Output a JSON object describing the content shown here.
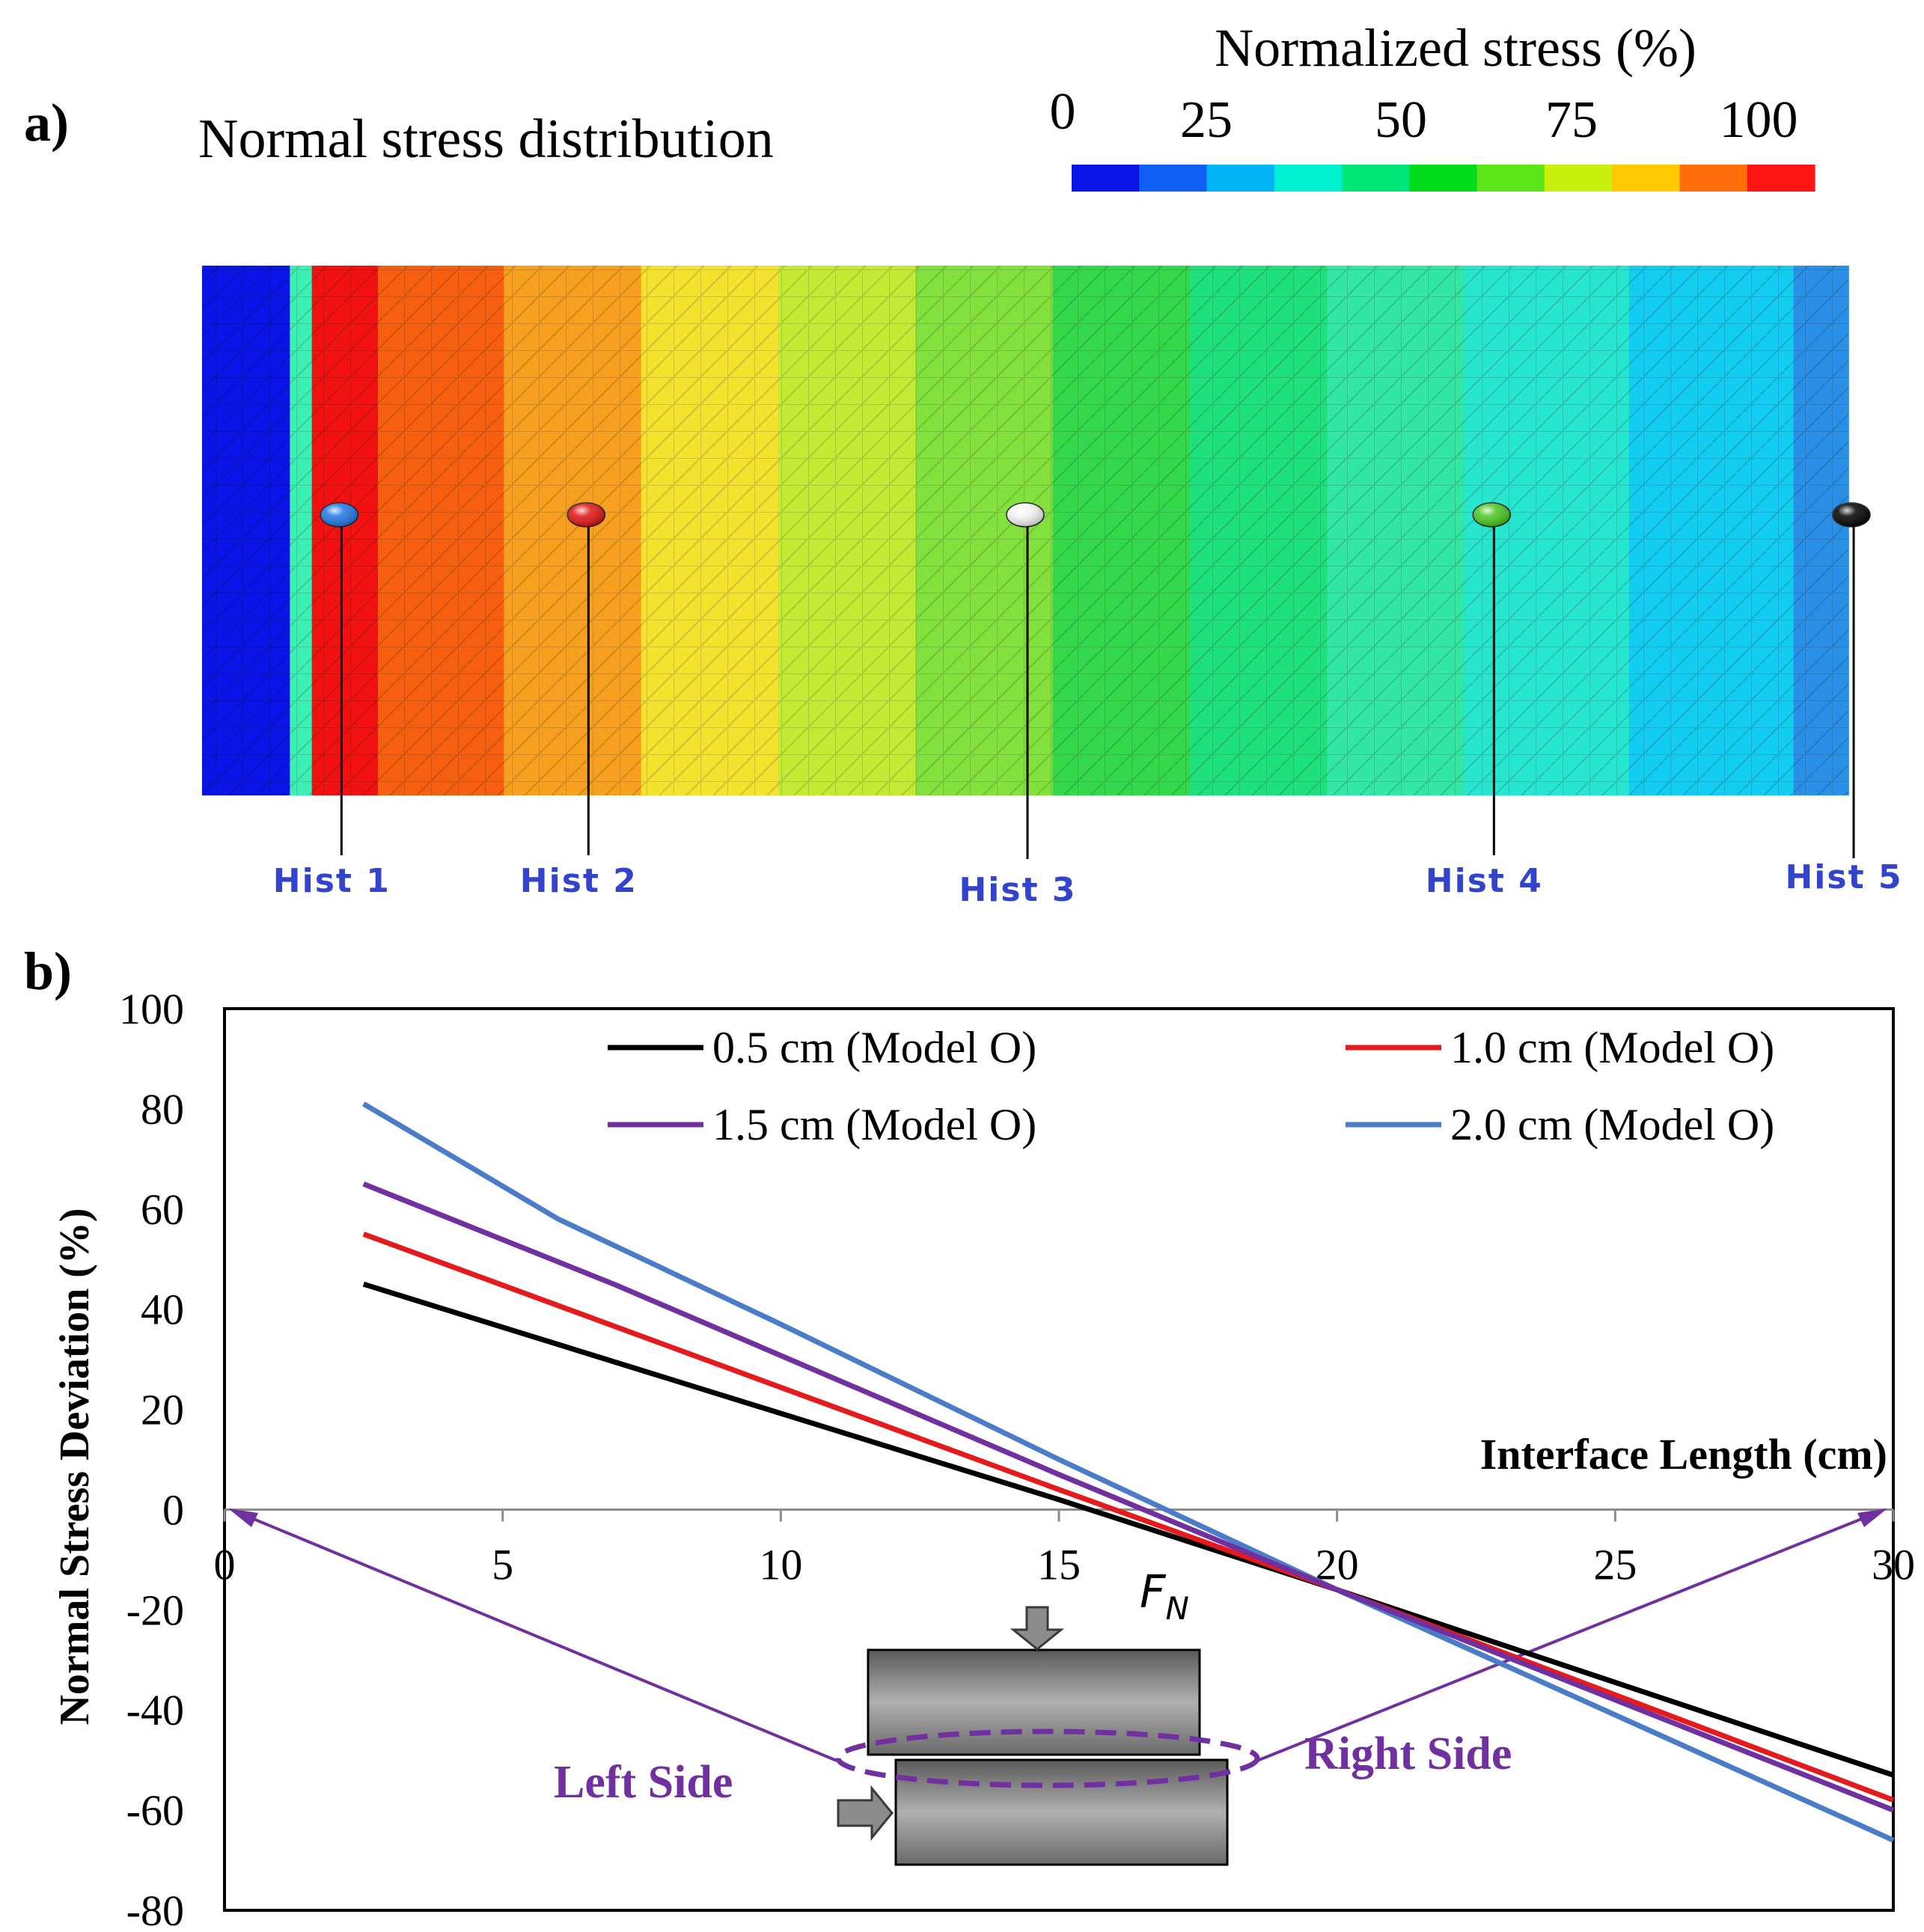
{
  "panel_a": {
    "label": "a)",
    "title": "Normal stress distribution",
    "colorbar": {
      "title": "Normalized stress (%)",
      "ticks": [
        "0",
        "25",
        "50",
        "75",
        "100"
      ],
      "colors": [
        "#0a14e6",
        "#0f5ff5",
        "#00b4f5",
        "#00f0d2",
        "#00e678",
        "#00dc19",
        "#5ae619",
        "#c8f00f",
        "#ffc800",
        "#ff6e0a",
        "#ff1414"
      ]
    },
    "field": {
      "x_range": [
        0,
        30
      ],
      "bands": [
        {
          "x0": 0,
          "x1": 1.6,
          "color": "#0a14e6"
        },
        {
          "x0": 1.6,
          "x1": 2.0,
          "color": "#3cf0b4"
        },
        {
          "x0": 2.0,
          "x1": 3.2,
          "color": "#f21111"
        },
        {
          "x0": 3.2,
          "x1": 5.5,
          "color": "#f55f0f"
        },
        {
          "x0": 5.5,
          "x1": 8.0,
          "color": "#f79f1e"
        },
        {
          "x0": 8.0,
          "x1": 10.5,
          "color": "#f3e32e"
        },
        {
          "x0": 10.5,
          "x1": 13.0,
          "color": "#c6ea34"
        },
        {
          "x0": 13.0,
          "x1": 15.5,
          "color": "#83e13d"
        },
        {
          "x0": 15.5,
          "x1": 18.0,
          "color": "#33d94a"
        },
        {
          "x0": 18.0,
          "x1": 20.5,
          "color": "#1ee07d"
        },
        {
          "x0": 20.5,
          "x1": 23.0,
          "color": "#32e6a5"
        },
        {
          "x0": 23.0,
          "x1": 26.0,
          "color": "#27e6cf"
        },
        {
          "x0": 26.0,
          "x1": 29.0,
          "color": "#12cdf0"
        },
        {
          "x0": 29.0,
          "x1": 30.0,
          "color": "#2a8fe6"
        }
      ]
    },
    "hist_points": [
      {
        "label": "Hist 1",
        "x": 2.5,
        "color": "#1e78e6"
      },
      {
        "label": "Hist 2",
        "x": 7.0,
        "color": "#e01414"
      },
      {
        "label": "Hist 3",
        "x": 15.0,
        "color": "#f4f4f4"
      },
      {
        "label": "Hist 4",
        "x": 23.5,
        "color": "#46c81e"
      },
      {
        "label": "Hist 5",
        "x": 30.0,
        "color": "#000000"
      }
    ]
  },
  "panel_b": {
    "label": "b)",
    "x_axis_title": "Interface Length (cm)",
    "annotations": {
      "force": "F",
      "force_sub": "N",
      "left": "Left Side",
      "right": "Right Side"
    }
  },
  "chart_data": {
    "type": "line",
    "title": "",
    "xlabel": "Interface Length (cm)",
    "ylabel": "Normal Stress Deviation (%)",
    "xlim": [
      0,
      30
    ],
    "ylim": [
      -80,
      100
    ],
    "xticks": [
      0,
      5,
      10,
      15,
      20,
      25,
      30
    ],
    "yticks": [
      -80,
      -60,
      -40,
      -20,
      0,
      20,
      40,
      60,
      80,
      100
    ],
    "legend_position": "top",
    "series": [
      {
        "name": "0.5 cm (Model O)",
        "color": "#000000",
        "x": [
          2.5,
          15,
          20,
          30
        ],
        "y": [
          45,
          2,
          -16,
          -53
        ]
      },
      {
        "name": "1.0 cm (Model O)",
        "color": "#e41a1c",
        "x": [
          2.5,
          15,
          20,
          30
        ],
        "y": [
          55,
          4,
          -16,
          -58
        ]
      },
      {
        "name": "1.5 cm (Model O)",
        "color": "#7030a0",
        "x": [
          2.5,
          7,
          15,
          20,
          30
        ],
        "y": [
          65,
          45,
          7,
          -16,
          -60
        ]
      },
      {
        "name": "2.0 cm (Model O)",
        "color": "#4a7cc7",
        "x": [
          2.5,
          6,
          10,
          15,
          20,
          30
        ],
        "y": [
          81,
          58,
          37,
          10,
          -16,
          -66
        ]
      }
    ]
  }
}
